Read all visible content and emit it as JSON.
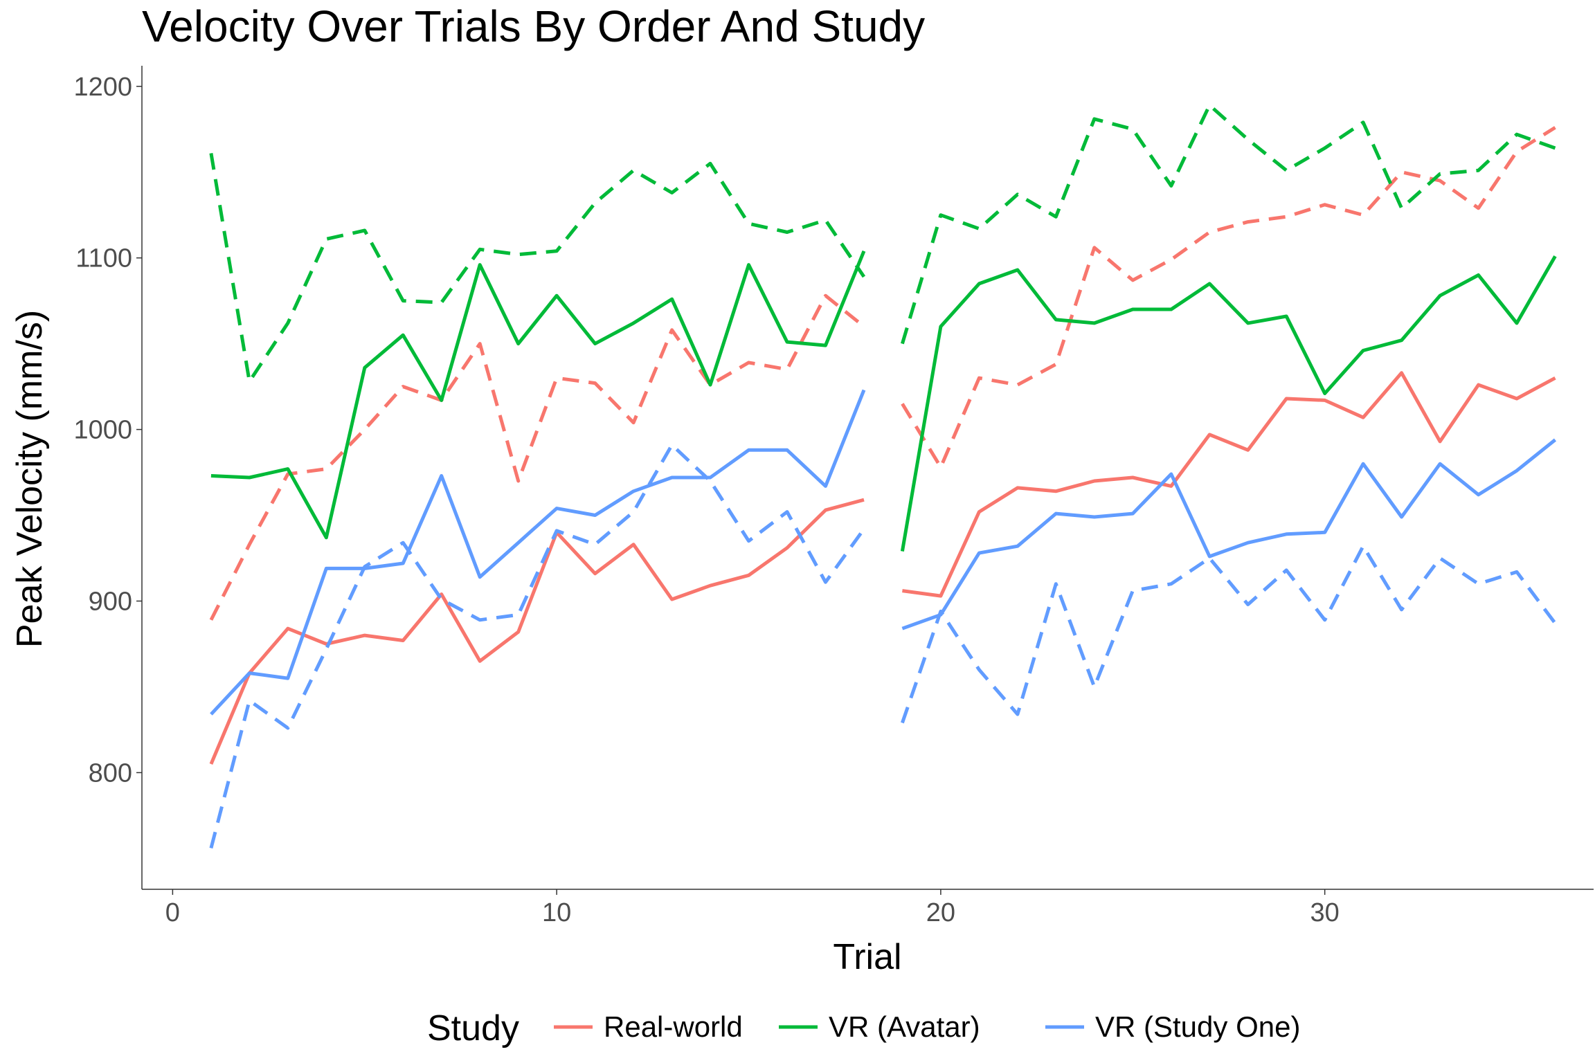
{
  "chart_data": {
    "type": "line",
    "title": "Velocity Over Trials By Order And Study",
    "xlabel": "Trial",
    "ylabel": "Peak Velocity (mm/s)",
    "xlim": [
      -0.8,
      37.0
    ],
    "ylim": [
      732,
      1212
    ],
    "xticks": [
      0,
      10,
      20,
      30
    ],
    "yticks": [
      800,
      900,
      1000,
      1100,
      1200
    ],
    "grid": false,
    "legend": {
      "title": "Study",
      "position": "bottom"
    },
    "segments": [
      {
        "trials_start": 1,
        "trials_end": 18
      },
      {
        "trials_start": 19,
        "trials_end": 36
      }
    ],
    "series": [
      {
        "name": "Real-world",
        "color": "#F8766D",
        "linestyle": "solid",
        "x": [
          1,
          2,
          3,
          4,
          5,
          6,
          7,
          8,
          9,
          10,
          11,
          12,
          13,
          14,
          15,
          16,
          17,
          18,
          19,
          20,
          21,
          22,
          23,
          24,
          25,
          26,
          27,
          28,
          29,
          30,
          31,
          32,
          33,
          34,
          35,
          36
        ],
        "y": [
          805,
          858,
          884,
          875,
          880,
          877,
          904,
          865,
          882,
          940,
          916,
          933,
          901,
          909,
          915,
          931,
          953,
          959,
          906,
          903,
          952,
          966,
          964,
          970,
          972,
          967,
          997,
          988,
          1018,
          1017,
          1007,
          1033,
          993,
          1026,
          1018,
          1030
        ]
      },
      {
        "name": "Real-world",
        "color": "#F8766D",
        "linestyle": "dashed",
        "x": [
          1,
          2,
          3,
          4,
          5,
          6,
          7,
          8,
          9,
          10,
          11,
          12,
          13,
          14,
          15,
          16,
          17,
          18,
          19,
          20,
          21,
          22,
          23,
          24,
          25,
          26,
          27,
          28,
          29,
          30,
          31,
          32,
          33,
          34,
          35,
          36
        ],
        "y": [
          889,
          933,
          974,
          977,
          1000,
          1025,
          1017,
          1050,
          970,
          1030,
          1027,
          1004,
          1058,
          1026,
          1039,
          1035,
          1078,
          1060,
          1015,
          978,
          1030,
          1026,
          1038,
          1106,
          1087,
          1099,
          1115,
          1121,
          1124,
          1131,
          1125,
          1150,
          1145,
          1129,
          1162,
          1176
        ]
      },
      {
        "name": "VR (Avatar)",
        "color": "#00BA38",
        "linestyle": "solid",
        "x": [
          1,
          2,
          3,
          4,
          5,
          6,
          7,
          8,
          9,
          10,
          11,
          12,
          13,
          14,
          15,
          16,
          17,
          18,
          19,
          20,
          21,
          22,
          23,
          24,
          25,
          26,
          27,
          28,
          29,
          30,
          31,
          32,
          33,
          34,
          35,
          36
        ],
        "y": [
          973,
          972,
          977,
          937,
          1036,
          1055,
          1017,
          1096,
          1050,
          1078,
          1050,
          1062,
          1076,
          1026,
          1096,
          1051,
          1049,
          1104,
          929,
          1060,
          1085,
          1093,
          1064,
          1062,
          1070,
          1070,
          1085,
          1062,
          1066,
          1021,
          1046,
          1052,
          1078,
          1090,
          1062,
          1101
        ]
      },
      {
        "name": "VR (Avatar)",
        "color": "#00BA38",
        "linestyle": "dashed",
        "x": [
          1,
          2,
          3,
          4,
          5,
          6,
          7,
          8,
          9,
          10,
          11,
          12,
          13,
          14,
          15,
          16,
          17,
          18,
          19,
          20,
          21,
          22,
          23,
          24,
          25,
          26,
          27,
          28,
          29,
          30,
          31,
          32,
          33,
          34,
          35,
          36
        ],
        "y": [
          1161,
          1028,
          1062,
          1111,
          1116,
          1075,
          1074,
          1105,
          1102,
          1104,
          1132,
          1151,
          1138,
          1155,
          1120,
          1115,
          1122,
          1089,
          1050,
          1125,
          1117,
          1137,
          1124,
          1181,
          1175,
          1142,
          1189,
          1169,
          1151,
          1164,
          1179,
          1129,
          1149,
          1151,
          1172,
          1164
        ]
      },
      {
        "name": "VR (Study One)",
        "color": "#619CFF",
        "linestyle": "solid",
        "x": [
          1,
          2,
          3,
          4,
          5,
          6,
          7,
          8,
          9,
          10,
          11,
          12,
          13,
          14,
          15,
          16,
          17,
          18,
          19,
          20,
          21,
          22,
          23,
          24,
          25,
          26,
          27,
          28,
          29,
          30,
          31,
          32,
          33,
          34,
          35,
          36
        ],
        "y": [
          834,
          858,
          855,
          919,
          919,
          922,
          973,
          914,
          934,
          954,
          950,
          964,
          972,
          972,
          988,
          988,
          967,
          1023,
          884,
          892,
          928,
          932,
          951,
          949,
          951,
          974,
          926,
          934,
          939,
          940,
          980,
          949,
          980,
          962,
          976,
          994
        ]
      },
      {
        "name": "VR (Study One)",
        "color": "#619CFF",
        "linestyle": "dashed",
        "x": [
          1,
          2,
          3,
          4,
          5,
          6,
          7,
          8,
          9,
          10,
          11,
          12,
          13,
          14,
          15,
          16,
          17,
          18,
          19,
          20,
          21,
          22,
          23,
          24,
          25,
          26,
          27,
          28,
          29,
          30,
          31,
          32,
          33,
          34,
          35,
          36
        ],
        "y": [
          756,
          842,
          826,
          872,
          920,
          934,
          901,
          889,
          892,
          941,
          933,
          952,
          991,
          970,
          935,
          952,
          911,
          942,
          829,
          894,
          860,
          834,
          910,
          850,
          906,
          910,
          925,
          898,
          918,
          889,
          932,
          895,
          925,
          910,
          917,
          887
        ]
      }
    ],
    "legend_entries": [
      "Real-world",
      "VR (Avatar)",
      "VR (Study One)"
    ]
  }
}
